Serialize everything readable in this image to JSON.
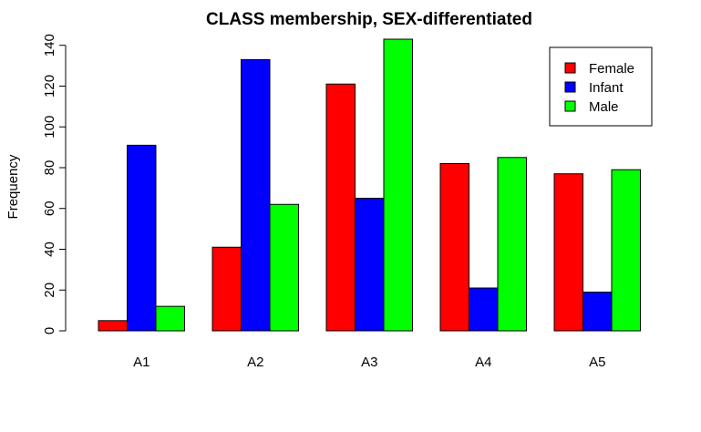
{
  "chart_data": {
    "type": "bar",
    "title": "CLASS membership, SEX-differentiated",
    "xlabel": "",
    "ylabel": "Frequency",
    "categories": [
      "A1",
      "A2",
      "A3",
      "A4",
      "A5"
    ],
    "series": [
      {
        "name": "Female",
        "color": "#ff0000",
        "values": [
          5,
          41,
          121,
          82,
          77
        ]
      },
      {
        "name": "Infant",
        "color": "#0000ff",
        "values": [
          91,
          133,
          65,
          21,
          19
        ]
      },
      {
        "name": "Male",
        "color": "#00ff00",
        "values": [
          12,
          62,
          143,
          85,
          79
        ]
      }
    ],
    "ylim": [
      0,
      143
    ],
    "yticks": [
      0,
      20,
      40,
      60,
      80,
      100,
      120,
      140
    ],
    "grid": false,
    "legend_position": "top-right"
  }
}
